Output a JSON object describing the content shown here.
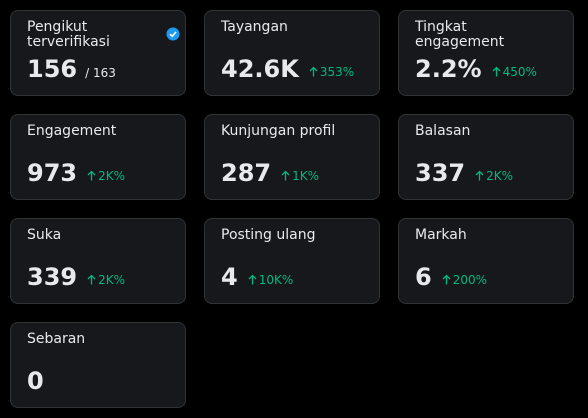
{
  "cards": [
    {
      "label": "Pengikut terverifikasi",
      "value": "156",
      "total": "/ 163",
      "verified": true
    },
    {
      "label": "Tayangan",
      "value": "42.6K",
      "change": "353%"
    },
    {
      "label": "Tingkat engagement",
      "value": "2.2%",
      "change": "450%"
    },
    {
      "label": "Engagement",
      "value": "973",
      "change": "2K%"
    },
    {
      "label": "Kunjungan profil",
      "value": "287",
      "change": "1K%"
    },
    {
      "label": "Balasan",
      "value": "337",
      "change": "2K%"
    },
    {
      "label": "Suka",
      "value": "339",
      "change": "2K%"
    },
    {
      "label": "Posting ulang",
      "value": "4",
      "change": "10K%"
    },
    {
      "label": "Markah",
      "value": "6",
      "change": "200%"
    },
    {
      "label": "Sebaran",
      "value": "0"
    }
  ]
}
